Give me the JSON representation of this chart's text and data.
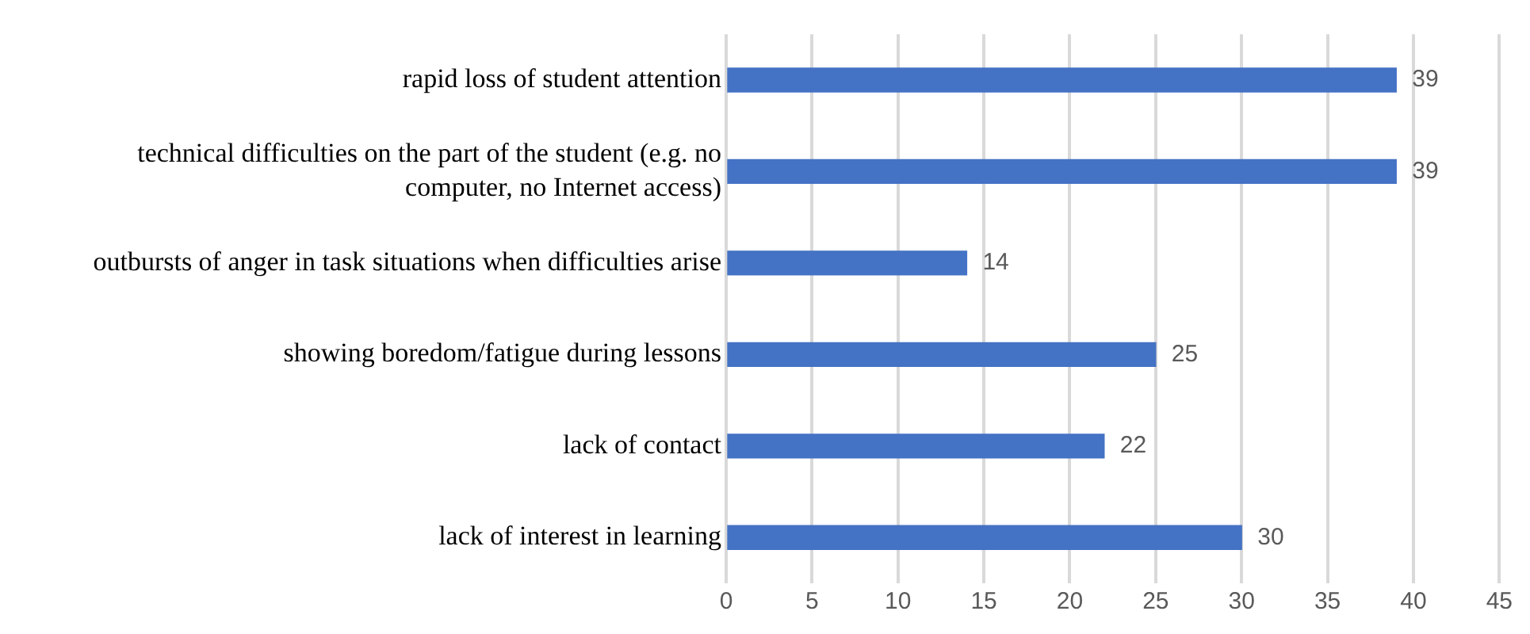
{
  "chart_data": {
    "type": "bar",
    "orientation": "horizontal",
    "categories": [
      "rapid loss of student attention",
      "technical difficulties on the part of the student (e.g. no computer, no Internet access)",
      "outbursts of anger in task situations when difficulties arise",
      "showing boredom/fatigue during lessons",
      "lack of contact",
      "lack of interest in learning"
    ],
    "values": [
      39,
      39,
      14,
      25,
      22,
      30
    ],
    "color": "#4472c4",
    "xlim": [
      0,
      45
    ],
    "xticks": [
      0,
      5,
      10,
      15,
      20,
      25,
      30,
      35,
      40,
      45
    ],
    "grid": "x",
    "data_labels": true,
    "legend": false
  }
}
